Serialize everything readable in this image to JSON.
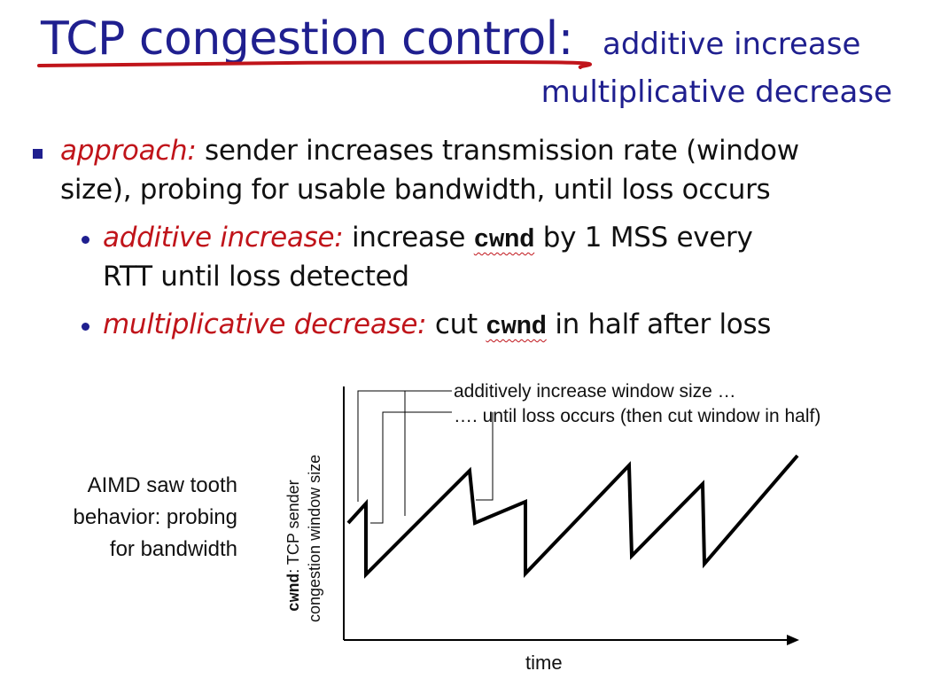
{
  "title": {
    "main": "TCP congestion control:",
    "line1": "additive increase",
    "line2": "multiplicative decrease"
  },
  "bullet1": {
    "lead": "approach:",
    "text1": " sender increases transmission rate (window",
    "text2": "size), probing for usable bandwidth, until loss occurs"
  },
  "sub1": {
    "lead": "additive increase:",
    "pre": " increase ",
    "code": "cwnd",
    "post": " by 1 MSS every",
    "line2": "RTT until loss detected"
  },
  "sub2": {
    "lead": "multiplicative decrease:",
    "pre": " cut ",
    "code": "cwnd",
    "post": " in half after loss"
  },
  "side_caption": {
    "line1": "AIMD saw tooth",
    "line2": "behavior: probing",
    "line3": "for bandwidth"
  },
  "diagram": {
    "annotation_increase": "additively increase window size …",
    "annotation_loss": "…. until loss occurs (then cut window in half)",
    "ylabel_code": "cwnd",
    "ylabel_rest": ": TCP sender",
    "ylabel_line2": "congestion window size",
    "xlabel": "time"
  },
  "colors": {
    "title": "#1f1f8f",
    "emphasis": "#c0141a",
    "underline_stroke": "#c0141a"
  }
}
